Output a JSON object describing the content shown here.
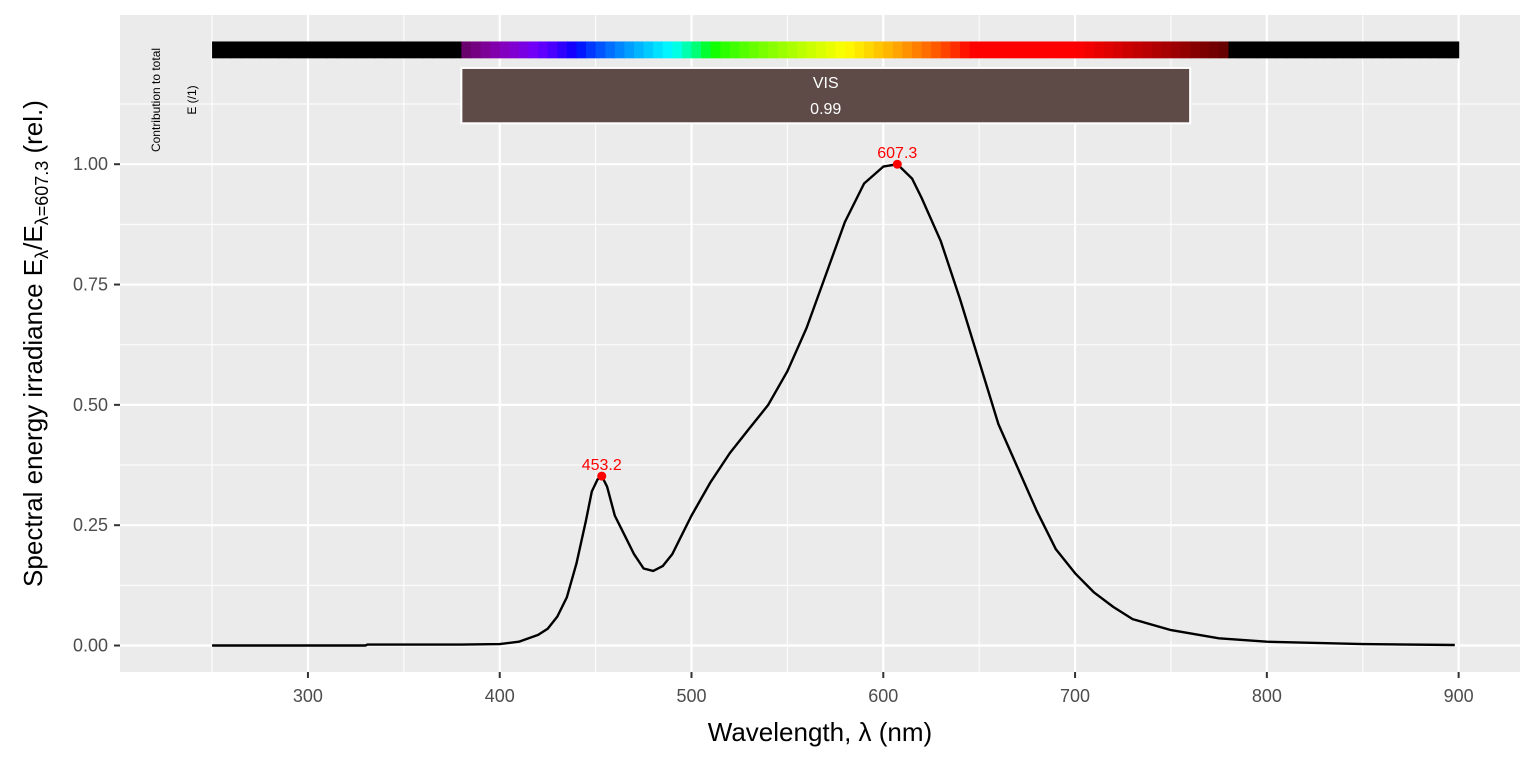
{
  "chart_data": {
    "type": "line",
    "title": "",
    "xlabel": "Wavelength, λ (nm)",
    "ylabel": {
      "prefix": "Spectral  energy  irradiance  E",
      "sub1": "λ",
      "mid": "/E",
      "sub2": "λ=607.3",
      "suffix": "  (rel.)"
    },
    "xlim": [
      202,
      932
    ],
    "ylim": [
      -0.055,
      1.31
    ],
    "x_ticks": [
      300,
      400,
      500,
      600,
      700,
      800,
      900
    ],
    "x_tick_labels": [
      "300",
      "400",
      "500",
      "600",
      "700",
      "800",
      "900"
    ],
    "y_ticks": [
      0,
      0.25,
      0.5,
      0.75,
      1.0
    ],
    "y_tick_labels": [
      "0.00",
      "0.25",
      "0.50",
      "0.75",
      "1.00"
    ],
    "grid": true,
    "series": [
      {
        "color": "#000000",
        "x": [
          250,
          300,
          330,
          331,
          350,
          380,
          400,
          410,
          420,
          425,
          430,
          435,
          440,
          445,
          448,
          451,
          453.2,
          456,
          460,
          465,
          470,
          475,
          480,
          485,
          490,
          495,
          500,
          510,
          520,
          530,
          540,
          550,
          560,
          570,
          580,
          590,
          600,
          607.3,
          615,
          620,
          630,
          640,
          650,
          660,
          670,
          680,
          690,
          700,
          710,
          720,
          730,
          750,
          775,
          800,
          850,
          898
        ],
        "y": [
          0.0,
          0.0,
          0.0,
          0.002,
          0.002,
          0.002,
          0.003,
          0.008,
          0.022,
          0.035,
          0.06,
          0.1,
          0.17,
          0.26,
          0.32,
          0.345,
          0.352,
          0.33,
          0.27,
          0.23,
          0.19,
          0.16,
          0.155,
          0.165,
          0.19,
          0.23,
          0.27,
          0.34,
          0.4,
          0.45,
          0.5,
          0.57,
          0.66,
          0.77,
          0.88,
          0.96,
          0.995,
          1.0,
          0.97,
          0.93,
          0.84,
          0.72,
          0.59,
          0.46,
          0.37,
          0.28,
          0.2,
          0.15,
          0.11,
          0.08,
          0.055,
          0.032,
          0.015,
          0.008,
          0.003,
          0.001
        ]
      }
    ],
    "peaks": [
      {
        "x": 453.2,
        "y": 0.352,
        "label": "453.2",
        "color": "#ff0000"
      },
      {
        "x": 607.3,
        "y": 1.0,
        "label": "607.3",
        "color": "#ff0000"
      }
    ],
    "annotations": {
      "spectrum_bar": {
        "x_range": [
          250,
          900
        ],
        "y_range": [
          1.22,
          1.255
        ]
      },
      "band": {
        "x_range": [
          380,
          760
        ],
        "y_range": [
          1.085,
          1.2
        ],
        "name": "VIS",
        "value": "0.99",
        "fill": "#5e4b48"
      },
      "side_label_line1": "Contribution  to  total",
      "side_label_line2": "E  (/1)"
    },
    "colors": {
      "panel_background": "#ebebeb",
      "grid_line": "#ffffff",
      "tick_text": "#4d4d4d",
      "curve": "#000000",
      "peak": "#ff0000"
    }
  }
}
